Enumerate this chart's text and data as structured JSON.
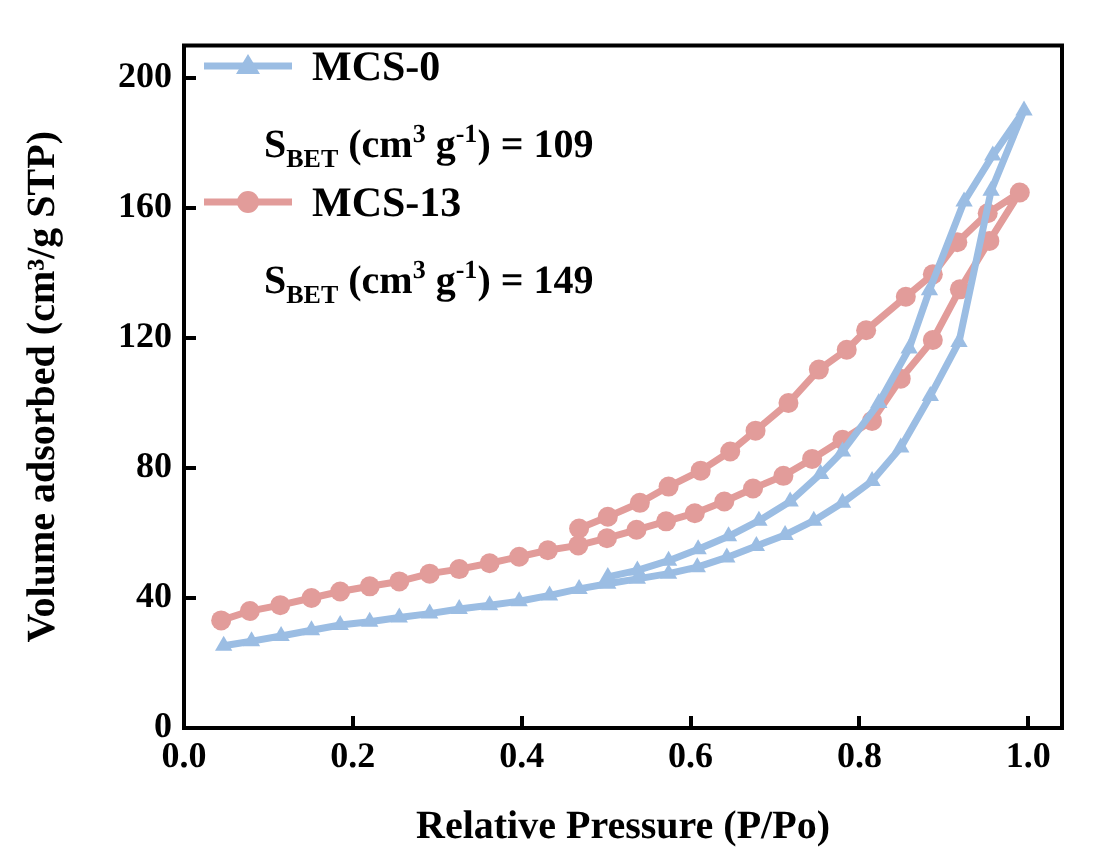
{
  "chart_data": {
    "type": "line",
    "xlabel": "Relative Pressure (P/Po)",
    "ylabel": "Volume adsorbed (cm³/g STP)",
    "xlim": [
      0,
      1.04
    ],
    "ylim": [
      0,
      210
    ],
    "xticks": [
      {
        "value": 0,
        "label": "0.0"
      },
      {
        "value": 0.2,
        "label": "0.2"
      },
      {
        "value": 0.4,
        "label": "0.4"
      },
      {
        "value": 0.6,
        "label": "0.6"
      },
      {
        "value": 0.8,
        "label": "0.8"
      },
      {
        "value": 1,
        "label": "1.0"
      }
    ],
    "yticks": [
      0,
      40,
      80,
      120,
      160,
      200
    ],
    "legend": "top left",
    "grid": false,
    "line_style": "solid",
    "annotations": [
      "S$_{BET}$ (cm$^{3}$ g$^{-1}$) = 109",
      "S$_{BET}$ (cm$^{3}$ g$^{-1}$) = 149"
    ],
    "series": [
      {
        "name": "MCS-0",
        "color": "#9bbde3",
        "marker": "triangle",
        "x": [
          0.047,
          0.08,
          0.115,
          0.151,
          0.185,
          0.22,
          0.255,
          0.291,
          0.326,
          0.362,
          0.397,
          0.433,
          0.468,
          0.502,
          0.537,
          0.574,
          0.608,
          0.643,
          0.678,
          0.712,
          0.746,
          0.78,
          0.815,
          0.849,
          0.884,
          0.918,
          0.956,
          0.995,
          0.958,
          0.924,
          0.883,
          0.859,
          0.823,
          0.78,
          0.754,
          0.718,
          0.681,
          0.645,
          0.609,
          0.574,
          0.537,
          0.502
        ],
        "values": [
          25.3,
          26.7,
          28.3,
          30.1,
          31.7,
          32.7,
          34,
          35.2,
          36.6,
          37.8,
          39,
          40.8,
          42.8,
          44.4,
          45.9,
          47.5,
          49.5,
          52.5,
          56,
          59.4,
          63.8,
          69.3,
          76,
          86.3,
          102.2,
          118.8,
          165.3,
          190,
          176.2,
          162,
          134.7,
          116.8,
          100,
          85.1,
          78.2,
          69.7,
          63.8,
          59,
          55,
          51.5,
          48.5,
          46.5
        ]
      },
      {
        "name": "MCS-13",
        "color": "#e29c9a",
        "marker": "circle",
        "x": [
          0.044,
          0.078,
          0.114,
          0.151,
          0.185,
          0.22,
          0.255,
          0.291,
          0.326,
          0.362,
          0.397,
          0.431,
          0.467,
          0.501,
          0.536,
          0.571,
          0.605,
          0.64,
          0.674,
          0.71,
          0.744,
          0.78,
          0.815,
          0.849,
          0.887,
          0.919,
          0.954,
          0.99,
          0.952,
          0.916,
          0.887,
          0.855,
          0.808,
          0.785,
          0.752,
          0.716,
          0.677,
          0.647,
          0.612,
          0.574,
          0.54,
          0.502,
          0.468
        ],
        "values": [
          33.1,
          36,
          37.8,
          40,
          42,
          43.6,
          45.1,
          47.5,
          48.9,
          50.7,
          52.7,
          54.7,
          56.2,
          58.4,
          61,
          63.6,
          66.1,
          69.7,
          73.7,
          77.6,
          82.8,
          88.7,
          94.5,
          107.5,
          119.4,
          135,
          149.9,
          164.8,
          158.4,
          149.5,
          139.6,
          132.7,
          122.4,
          116.4,
          110.3,
          100,
          91.5,
          85.1,
          79.2,
          74.3,
          69.3,
          65,
          61.4
        ]
      }
    ]
  }
}
